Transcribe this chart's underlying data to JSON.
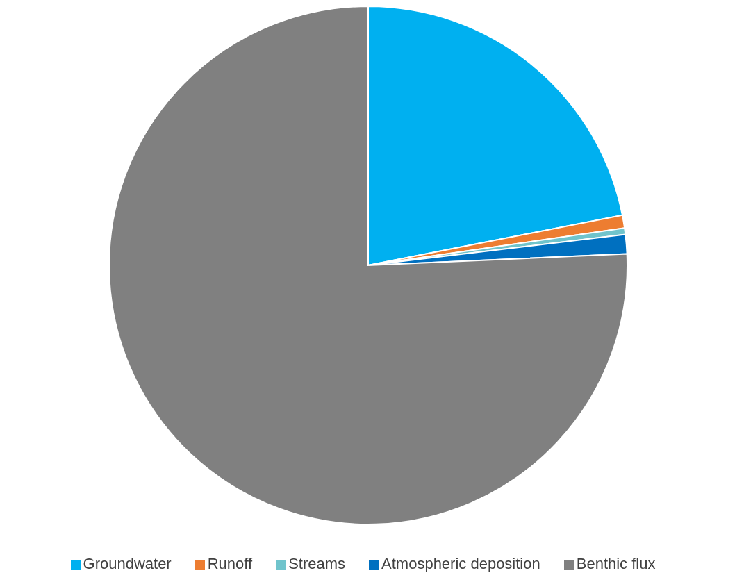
{
  "chart_data": {
    "type": "pie",
    "categories": [
      "Groundwater",
      "Runoff",
      "Streams",
      "Atmospheric deposition",
      "Benthic flux"
    ],
    "values": [
      21.9,
      0.8,
      0.4,
      1.2,
      75.7
    ],
    "colors": [
      "#00b0f0",
      "#ed7d31",
      "#70c4cc",
      "#0070c0",
      "#808080"
    ],
    "legend": "bottom"
  }
}
